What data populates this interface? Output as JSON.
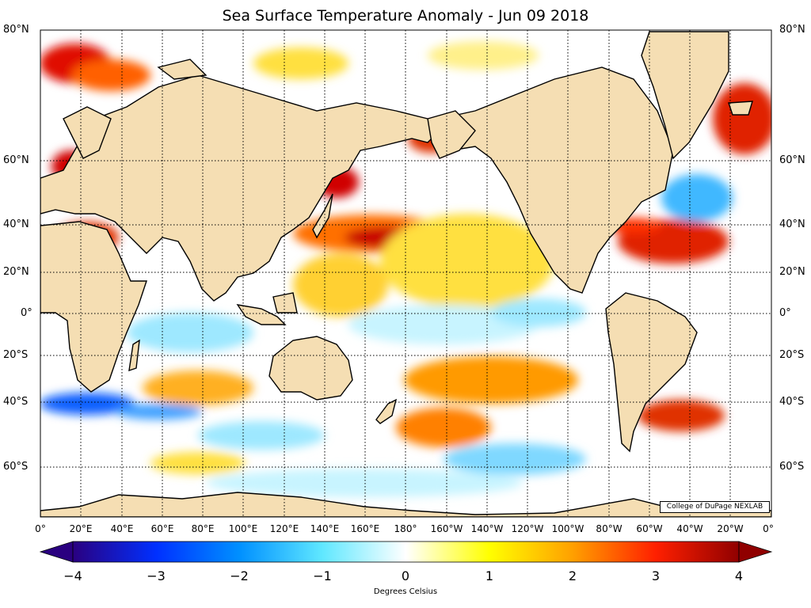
{
  "title": "Sea Surface Temperature Anomaly - Jun 09 2018",
  "lat_labels": [
    "80°N",
    "60°N",
    "40°N",
    "20°N",
    "0°",
    "20°S",
    "40°S",
    "60°S"
  ],
  "lon_labels": [
    "0°",
    "20°E",
    "40°E",
    "60°E",
    "80°E",
    "100°E",
    "120°E",
    "140°E",
    "160°E",
    "180°",
    "160°W",
    "140°W",
    "120°W",
    "100°W",
    "80°W",
    "60°W",
    "40°W",
    "20°W",
    "0°"
  ],
  "colorbar": {
    "ticks": [
      "−4",
      "−3",
      "−2",
      "−1",
      "0",
      "1",
      "2",
      "3",
      "4"
    ],
    "label": "Degrees Celsius",
    "colors": [
      "#2a0080",
      "#0030ff",
      "#0090ff",
      "#60e8ff",
      "#ffffff",
      "#ffff00",
      "#ffa000",
      "#ff2000",
      "#900000"
    ]
  },
  "credit": "College of DuPage NEXLAB",
  "colors": {
    "land": "#f5deb3",
    "ocean": "#ffffff",
    "warm": "#ff8c00",
    "hot": "#cc0000",
    "cool": "#7fd8ff",
    "cold": "#1060ff"
  }
}
